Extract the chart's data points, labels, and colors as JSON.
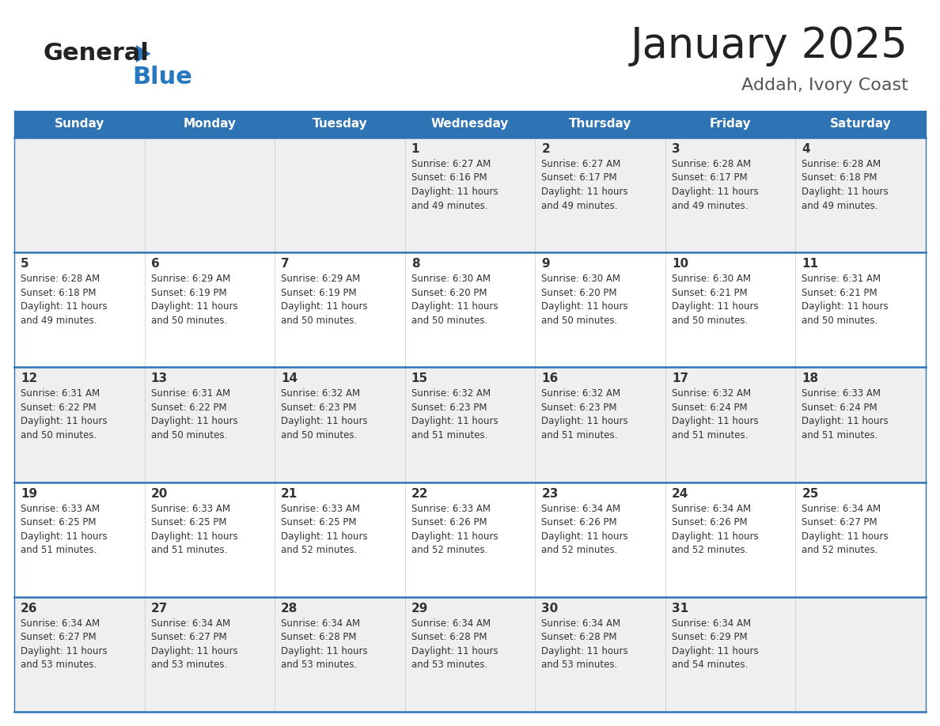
{
  "title": "January 2025",
  "subtitle": "Addah, Ivory Coast",
  "header_bg_color": "#2E74B5",
  "header_text_color": "#FFFFFF",
  "odd_row_bg": "#EFEFEF",
  "even_row_bg": "#FFFFFF",
  "border_color": "#2E74B5",
  "text_color": "#333333",
  "days_of_week": [
    "Sunday",
    "Monday",
    "Tuesday",
    "Wednesday",
    "Thursday",
    "Friday",
    "Saturday"
  ],
  "weeks": [
    [
      {
        "day": "",
        "info": ""
      },
      {
        "day": "",
        "info": ""
      },
      {
        "day": "",
        "info": ""
      },
      {
        "day": "1",
        "info": "Sunrise: 6:27 AM\nSunset: 6:16 PM\nDaylight: 11 hours\nand 49 minutes."
      },
      {
        "day": "2",
        "info": "Sunrise: 6:27 AM\nSunset: 6:17 PM\nDaylight: 11 hours\nand 49 minutes."
      },
      {
        "day": "3",
        "info": "Sunrise: 6:28 AM\nSunset: 6:17 PM\nDaylight: 11 hours\nand 49 minutes."
      },
      {
        "day": "4",
        "info": "Sunrise: 6:28 AM\nSunset: 6:18 PM\nDaylight: 11 hours\nand 49 minutes."
      }
    ],
    [
      {
        "day": "5",
        "info": "Sunrise: 6:28 AM\nSunset: 6:18 PM\nDaylight: 11 hours\nand 49 minutes."
      },
      {
        "day": "6",
        "info": "Sunrise: 6:29 AM\nSunset: 6:19 PM\nDaylight: 11 hours\nand 50 minutes."
      },
      {
        "day": "7",
        "info": "Sunrise: 6:29 AM\nSunset: 6:19 PM\nDaylight: 11 hours\nand 50 minutes."
      },
      {
        "day": "8",
        "info": "Sunrise: 6:30 AM\nSunset: 6:20 PM\nDaylight: 11 hours\nand 50 minutes."
      },
      {
        "day": "9",
        "info": "Sunrise: 6:30 AM\nSunset: 6:20 PM\nDaylight: 11 hours\nand 50 minutes."
      },
      {
        "day": "10",
        "info": "Sunrise: 6:30 AM\nSunset: 6:21 PM\nDaylight: 11 hours\nand 50 minutes."
      },
      {
        "day": "11",
        "info": "Sunrise: 6:31 AM\nSunset: 6:21 PM\nDaylight: 11 hours\nand 50 minutes."
      }
    ],
    [
      {
        "day": "12",
        "info": "Sunrise: 6:31 AM\nSunset: 6:22 PM\nDaylight: 11 hours\nand 50 minutes."
      },
      {
        "day": "13",
        "info": "Sunrise: 6:31 AM\nSunset: 6:22 PM\nDaylight: 11 hours\nand 50 minutes."
      },
      {
        "day": "14",
        "info": "Sunrise: 6:32 AM\nSunset: 6:23 PM\nDaylight: 11 hours\nand 50 minutes."
      },
      {
        "day": "15",
        "info": "Sunrise: 6:32 AM\nSunset: 6:23 PM\nDaylight: 11 hours\nand 51 minutes."
      },
      {
        "day": "16",
        "info": "Sunrise: 6:32 AM\nSunset: 6:23 PM\nDaylight: 11 hours\nand 51 minutes."
      },
      {
        "day": "17",
        "info": "Sunrise: 6:32 AM\nSunset: 6:24 PM\nDaylight: 11 hours\nand 51 minutes."
      },
      {
        "day": "18",
        "info": "Sunrise: 6:33 AM\nSunset: 6:24 PM\nDaylight: 11 hours\nand 51 minutes."
      }
    ],
    [
      {
        "day": "19",
        "info": "Sunrise: 6:33 AM\nSunset: 6:25 PM\nDaylight: 11 hours\nand 51 minutes."
      },
      {
        "day": "20",
        "info": "Sunrise: 6:33 AM\nSunset: 6:25 PM\nDaylight: 11 hours\nand 51 minutes."
      },
      {
        "day": "21",
        "info": "Sunrise: 6:33 AM\nSunset: 6:25 PM\nDaylight: 11 hours\nand 52 minutes."
      },
      {
        "day": "22",
        "info": "Sunrise: 6:33 AM\nSunset: 6:26 PM\nDaylight: 11 hours\nand 52 minutes."
      },
      {
        "day": "23",
        "info": "Sunrise: 6:34 AM\nSunset: 6:26 PM\nDaylight: 11 hours\nand 52 minutes."
      },
      {
        "day": "24",
        "info": "Sunrise: 6:34 AM\nSunset: 6:26 PM\nDaylight: 11 hours\nand 52 minutes."
      },
      {
        "day": "25",
        "info": "Sunrise: 6:34 AM\nSunset: 6:27 PM\nDaylight: 11 hours\nand 52 minutes."
      }
    ],
    [
      {
        "day": "26",
        "info": "Sunrise: 6:34 AM\nSunset: 6:27 PM\nDaylight: 11 hours\nand 53 minutes."
      },
      {
        "day": "27",
        "info": "Sunrise: 6:34 AM\nSunset: 6:27 PM\nDaylight: 11 hours\nand 53 minutes."
      },
      {
        "day": "28",
        "info": "Sunrise: 6:34 AM\nSunset: 6:28 PM\nDaylight: 11 hours\nand 53 minutes."
      },
      {
        "day": "29",
        "info": "Sunrise: 6:34 AM\nSunset: 6:28 PM\nDaylight: 11 hours\nand 53 minutes."
      },
      {
        "day": "30",
        "info": "Sunrise: 6:34 AM\nSunset: 6:28 PM\nDaylight: 11 hours\nand 53 minutes."
      },
      {
        "day": "31",
        "info": "Sunrise: 6:34 AM\nSunset: 6:29 PM\nDaylight: 11 hours\nand 54 minutes."
      },
      {
        "day": "",
        "info": ""
      }
    ]
  ],
  "logo_general_color": "#222222",
  "logo_blue_color": "#2778C0",
  "logo_triangle_color": "#2778C0",
  "title_color": "#222222",
  "subtitle_color": "#555555",
  "title_fontsize": 38,
  "subtitle_fontsize": 16,
  "dow_fontsize": 11,
  "day_num_fontsize": 11,
  "info_fontsize": 8.5
}
